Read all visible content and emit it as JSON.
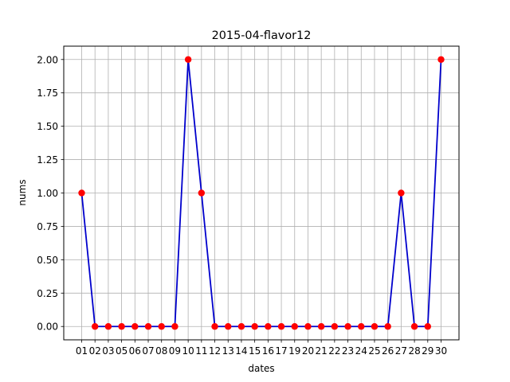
{
  "chart_data": {
    "type": "line",
    "title": "2015-04-flavor12",
    "xlabel": "dates",
    "ylabel": "nums",
    "categories": [
      "01",
      "02",
      "03",
      "05",
      "06",
      "07",
      "08",
      "09",
      "10",
      "11",
      "12",
      "13",
      "14",
      "15",
      "16",
      "17",
      "19",
      "20",
      "21",
      "22",
      "23",
      "24",
      "25",
      "26",
      "27",
      "28",
      "29",
      "30"
    ],
    "series": [
      {
        "values": [
          1,
          0,
          0,
          0,
          0,
          0,
          0,
          0,
          2,
          1,
          0,
          0,
          0,
          0,
          0,
          0,
          0,
          0,
          0,
          0,
          0,
          0,
          0,
          0,
          1,
          0,
          0,
          2
        ],
        "line_color": "#0000cc",
        "marker_color": "#ff0000"
      }
    ],
    "ylim": [
      -0.1,
      2.1
    ],
    "yticks": [
      0.0,
      0.25,
      0.5,
      0.75,
      1.0,
      1.25,
      1.5,
      1.75,
      2.0
    ],
    "ytick_labels": [
      "0.00",
      "0.25",
      "0.50",
      "0.75",
      "1.00",
      "1.25",
      "1.50",
      "1.75",
      "2.00"
    ],
    "grid": true
  }
}
